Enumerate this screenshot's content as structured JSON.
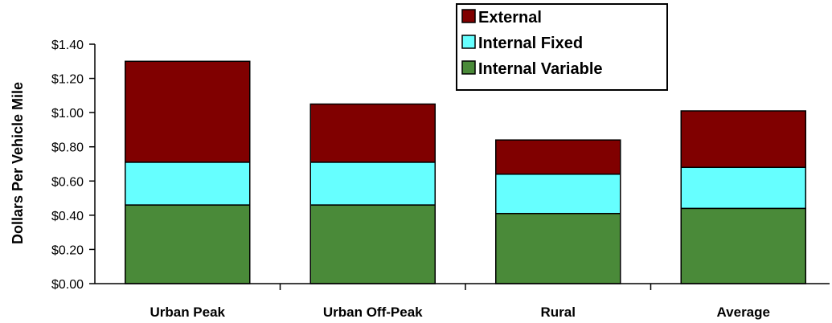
{
  "chart_data": {
    "type": "bar",
    "stacked": true,
    "categories": [
      "Urban Peak",
      "Urban Off-Peak",
      "Rural",
      "Average"
    ],
    "ylabel": "Dollars  Per  Vehicle  Mile",
    "ylim": [
      0,
      1.4
    ],
    "yticks": [
      "$0.00",
      "$0.20",
      "$0.40",
      "$0.60",
      "$0.80",
      "$1.00",
      "$1.20",
      "$1.40"
    ],
    "yticks_values": [
      0,
      0.2,
      0.4,
      0.6,
      0.8,
      1.0,
      1.2,
      1.4
    ],
    "grid": false,
    "legend_position": "top-right",
    "series": [
      {
        "name": "Internal Variable",
        "color": "#4a8a39",
        "values": [
          0.46,
          0.46,
          0.41,
          0.44
        ]
      },
      {
        "name": "Internal Fixed",
        "color": "#66ffff",
        "values": [
          0.25,
          0.25,
          0.23,
          0.24
        ]
      },
      {
        "name": "External",
        "color": "#800000",
        "values": [
          0.59,
          0.34,
          0.2,
          0.33
        ]
      }
    ],
    "legend_order": [
      "External",
      "Internal Fixed",
      "Internal Variable"
    ]
  }
}
